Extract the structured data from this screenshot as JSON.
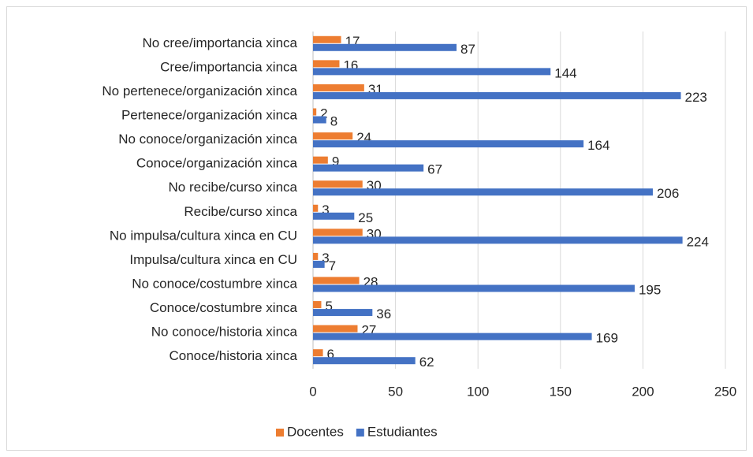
{
  "chart_data": {
    "type": "hbar",
    "categories": [
      "No cree/importancia xinca",
      "Cree/importancia xinca",
      "No pertenece/organización xinca",
      "Pertenece/organización xinca",
      "No conoce/organización xinca",
      "Conoce/organización xinca",
      "No recibe/curso xinca",
      "Recibe/curso xinca",
      "No impulsa/cultura xinca en CU",
      "Impulsa/cultura xinca en CU",
      "No conoce/costumbre xinca",
      "Conoce/costumbre xinca",
      "No conoce/historia xinca",
      "Conoce/historia xinca"
    ],
    "series": [
      {
        "name": "Docentes",
        "color": "#ed7d31",
        "values": [
          17,
          16,
          31,
          2,
          24,
          9,
          30,
          3,
          30,
          3,
          28,
          5,
          27,
          6
        ]
      },
      {
        "name": "Estudiantes",
        "color": "#4472c4",
        "values": [
          87,
          144,
          223,
          8,
          164,
          67,
          206,
          25,
          224,
          7,
          195,
          36,
          169,
          62
        ]
      }
    ],
    "xlim": [
      0,
      250
    ],
    "xticks": [
      0,
      50,
      100,
      150,
      200,
      250
    ],
    "grid": true,
    "legend": "bottom"
  }
}
